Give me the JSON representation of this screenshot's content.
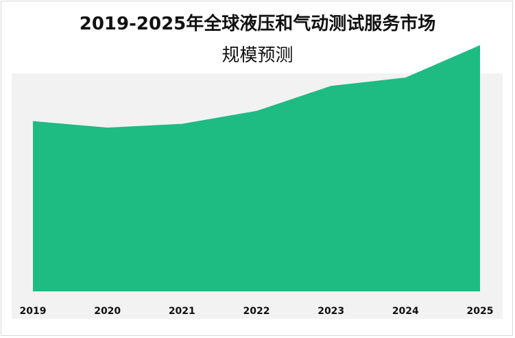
{
  "chart_data": {
    "type": "area",
    "title_line1": "2019-2025年全球液压和气动测试服务市场",
    "title_line2": "规模预测",
    "categories": [
      "2019",
      "2020",
      "2021",
      "2022",
      "2023",
      "2024",
      "2025"
    ],
    "values": [
      184,
      177,
      181,
      195,
      222,
      231,
      266
    ],
    "ylim": [
      0,
      300
    ],
    "grid": false,
    "colors": {
      "area": "#1ebb82",
      "plot_background": "#f2f2f2",
      "title": "#111111",
      "tick_label": "#111111"
    }
  }
}
